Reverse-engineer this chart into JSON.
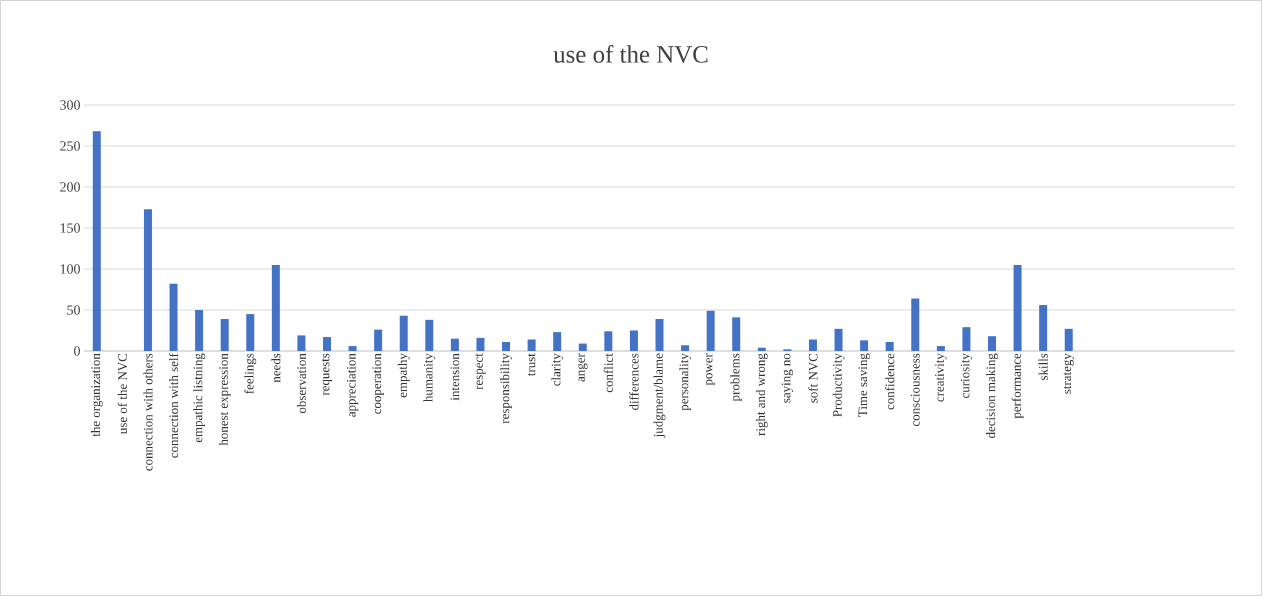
{
  "chart_data": {
    "type": "bar",
    "title": "use of the NVC",
    "categories": [
      "the organization",
      "use of the NVC",
      "connection with others",
      "connection with self",
      "empathic listning",
      "honest expression",
      "feelings",
      "needs",
      "observation",
      "requests",
      "appreciation",
      "cooperation",
      "empathy",
      "humanity",
      "intension",
      "respect",
      "responsibility",
      "trust",
      "clarity",
      "anger",
      "conflict",
      "differences",
      "judgment/blame",
      "personality",
      "power",
      "problems",
      "right and wrong",
      "saying no",
      "soft NVC",
      "Productivity",
      "Time saving",
      "confidence",
      "consciousness",
      "creativity",
      "curiosity",
      "decision making",
      "performance",
      "skills",
      "strategy",
      null,
      null,
      null,
      null,
      null,
      null
    ],
    "values": [
      268,
      0,
      173,
      82,
      50,
      39,
      45,
      105,
      19,
      17,
      6,
      26,
      43,
      38,
      15,
      16,
      11,
      14,
      23,
      9,
      24,
      25,
      39,
      7,
      49,
      41,
      4,
      2,
      14,
      27,
      13,
      11,
      64,
      6,
      29,
      18,
      105,
      56,
      27,
      null,
      null,
      null,
      null,
      null,
      null
    ],
    "color": "#4472c4",
    "ylim": [
      0,
      300
    ],
    "yticks": [
      0,
      50,
      100,
      150,
      200,
      250,
      300
    ],
    "grid": "y"
  }
}
